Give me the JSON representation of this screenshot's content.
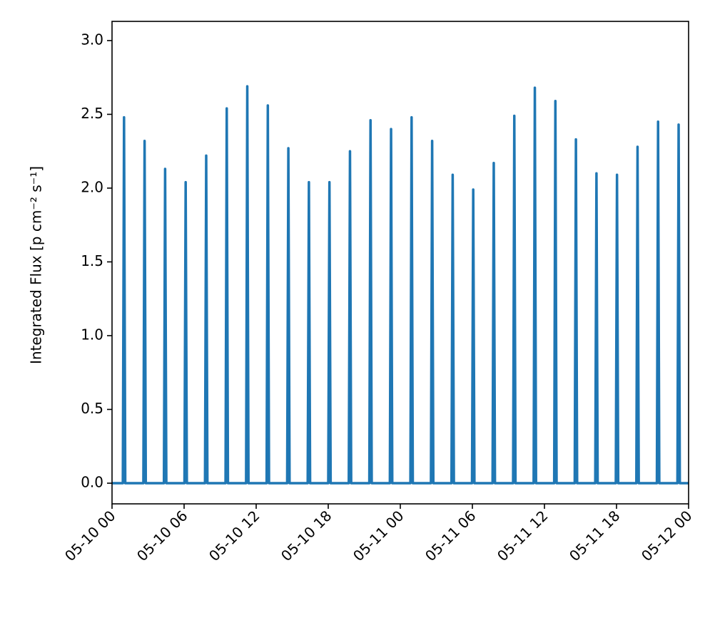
{
  "chart_data": {
    "type": "line",
    "ylabel": "Integrated Flux [p cm⁻² s⁻¹]",
    "color": "#1f77b4",
    "x": [
      0,
      0.9,
      1,
      1.1,
      2.61,
      2.71,
      2.81,
      4.32,
      4.42,
      4.52,
      6.03,
      6.13,
      6.23,
      7.74,
      7.84,
      7.94,
      9.45,
      9.55,
      9.65,
      11.16,
      11.26,
      11.36,
      12.87,
      12.97,
      13.07,
      14.58,
      14.68,
      14.78,
      16.29,
      16.39,
      16.49,
      18,
      18.1,
      18.2,
      19.71,
      19.81,
      19.91,
      21.42,
      21.52,
      21.62,
      23.13,
      23.23,
      23.33,
      24.84,
      24.94,
      25.04,
      26.55,
      26.65,
      26.75,
      28.26,
      28.36,
      28.46,
      29.97,
      30.07,
      30.17,
      31.68,
      31.78,
      31.88,
      33.39,
      33.49,
      33.59,
      35.1,
      35.2,
      35.3,
      36.81,
      36.91,
      37.01,
      38.52,
      38.62,
      38.72,
      40.23,
      40.33,
      40.43,
      41.94,
      42.04,
      42.14,
      43.65,
      43.75,
      43.85,
      45.36,
      45.46,
      45.56,
      47.07,
      47.17,
      47.27,
      48
    ],
    "values": [
      0,
      0,
      2.48,
      0,
      0,
      2.32,
      0,
      0,
      2.13,
      0,
      0,
      2.04,
      0,
      0,
      2.22,
      0,
      0,
      2.54,
      0,
      0,
      2.69,
      0,
      0,
      2.56,
      0,
      0,
      2.27,
      0,
      0,
      2.04,
      0,
      0,
      2.04,
      0,
      0,
      2.25,
      0,
      0,
      2.46,
      0,
      0,
      2.4,
      0,
      0,
      2.48,
      0,
      0,
      2.32,
      0,
      0,
      2.09,
      0,
      0,
      1.99,
      0,
      0,
      2.17,
      0,
      0,
      2.49,
      0,
      0,
      2.68,
      0,
      0,
      2.59,
      0,
      0,
      2.33,
      0,
      0,
      2.1,
      0,
      0,
      2.09,
      0,
      0,
      2.28,
      0,
      0,
      2.45,
      0,
      0,
      2.43,
      0,
      0
    ],
    "xlim": [
      0,
      48
    ],
    "xticks": [
      {
        "value": 0,
        "label": "05-10 00"
      },
      {
        "value": 6,
        "label": "05-10 06"
      },
      {
        "value": 12,
        "label": "05-10 12"
      },
      {
        "value": 18,
        "label": "05-10 18"
      },
      {
        "value": 24,
        "label": "05-11 00"
      },
      {
        "value": 30,
        "label": "05-11 06"
      },
      {
        "value": 36,
        "label": "05-11 12"
      },
      {
        "value": 42,
        "label": "05-11 18"
      },
      {
        "value": 48,
        "label": "05-12 00"
      }
    ],
    "ylim": [
      -0.14,
      3.13
    ],
    "yticks": [
      {
        "value": 0,
        "label": "0.0"
      },
      0.5,
      {
        "value": 1,
        "label": "1.0"
      },
      1.5,
      {
        "value": 2,
        "label": "2.0"
      },
      2.5,
      {
        "value": 3,
        "label": "3.0"
      }
    ]
  }
}
